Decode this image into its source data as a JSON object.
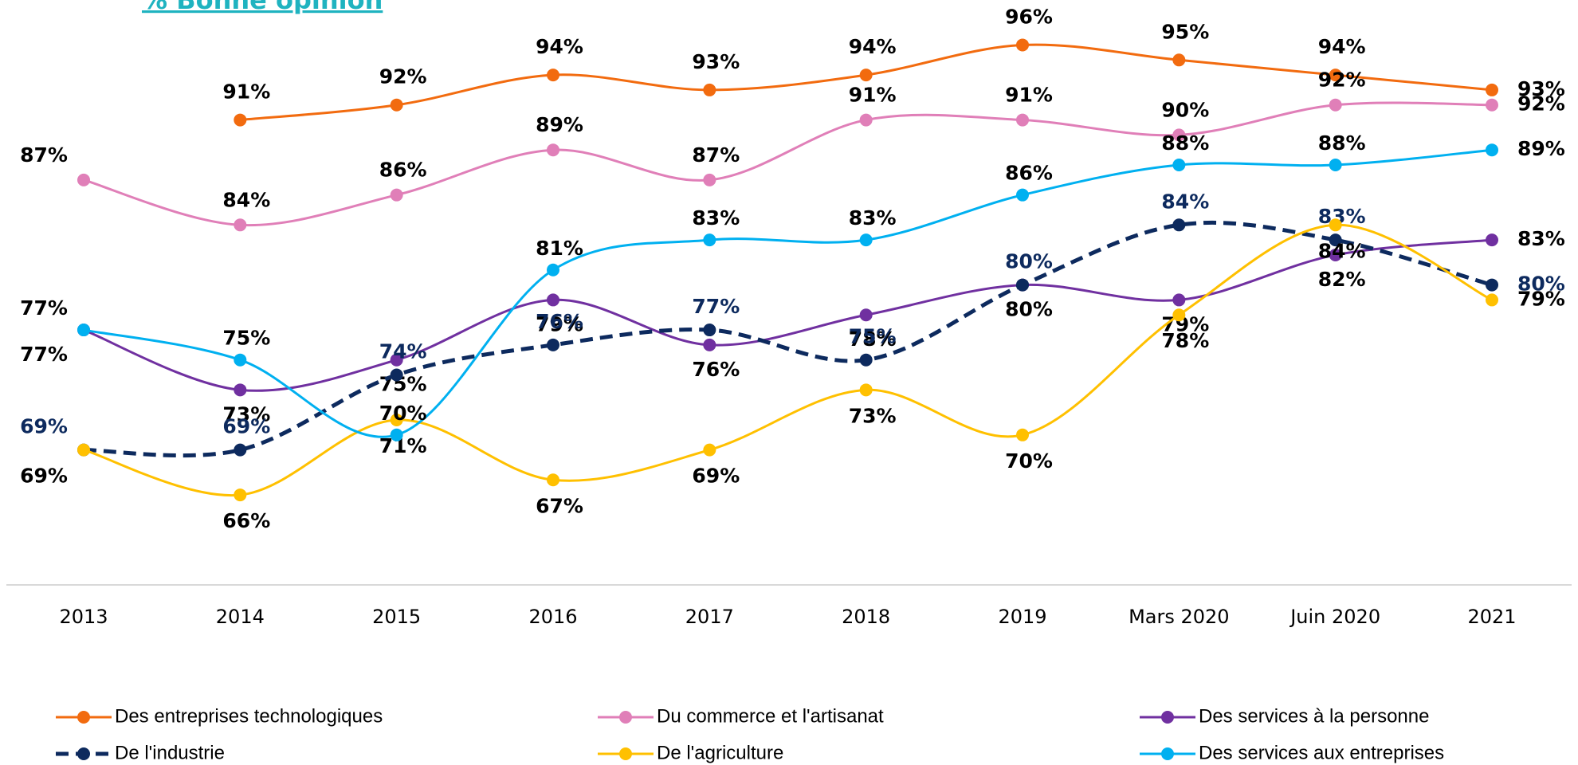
{
  "chart_data": {
    "type": "line",
    "title": "% Bonne opinion",
    "categories": [
      "2013",
      "2014",
      "2015",
      "2016",
      "2017",
      "2018",
      "2019",
      "Mars 2020",
      "Juin 2020",
      "2021"
    ],
    "series": [
      {
        "name": "Des entreprises technologiques",
        "color": "#f26b0f",
        "values": [
          null,
          91,
          92,
          94,
          93,
          94,
          96,
          95,
          94,
          93
        ],
        "value_labels": [
          null,
          "91%",
          "92%",
          "94%",
          "93%",
          "94%",
          "96%",
          "95%",
          "94%",
          "93%"
        ]
      },
      {
        "name": "Du commerce et l'artisanat",
        "color": "#e07fb8",
        "values": [
          87,
          84,
          86,
          89,
          87,
          91,
          91,
          90,
          92,
          92
        ],
        "value_labels": [
          "87%",
          "84%",
          "86%",
          "89%",
          "87%",
          "91%",
          "91%",
          "90%",
          "92%",
          "92%"
        ]
      },
      {
        "name": "Des services à la personne",
        "color": "#7030a0",
        "values": [
          77,
          73,
          75,
          79,
          76,
          78,
          80,
          79,
          82,
          83
        ],
        "value_labels": [
          "77%",
          "73%",
          "75%",
          "79%",
          "76%",
          "78%",
          "80%",
          "79%",
          "82%",
          "83%"
        ]
      },
      {
        "name": "De l'industrie",
        "color": "#0d2a5e",
        "dashed": true,
        "values": [
          69,
          69,
          74,
          76,
          77,
          75,
          80,
          84,
          83,
          80
        ],
        "value_labels": [
          "69%",
          "69%",
          "74%",
          "76%",
          "77%",
          "75%",
          "80%",
          "84%",
          "83%",
          "80%"
        ]
      },
      {
        "name": "De l'agriculture",
        "color": "#ffc000",
        "values": [
          69,
          66,
          71,
          67,
          69,
          73,
          70,
          78,
          84,
          79
        ],
        "value_labels": [
          "69%",
          "66%",
          "71%",
          "67%",
          "69%",
          "73%",
          "70%",
          "78%",
          "84%",
          "79%"
        ]
      },
      {
        "name": "Des services aux entreprises",
        "color": "#00b0f0",
        "values": [
          77,
          75,
          70,
          81,
          83,
          83,
          86,
          88,
          88,
          89
        ],
        "value_labels": [
          "77%",
          "75%",
          "70%",
          "81%",
          "83%",
          "83%",
          "86%",
          "88%",
          "88%",
          "89%"
        ]
      }
    ],
    "ylim": [
      60,
      99
    ]
  }
}
